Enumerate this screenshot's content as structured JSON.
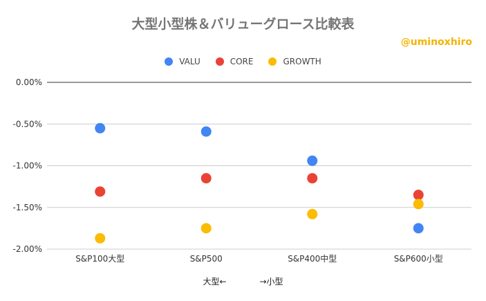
{
  "page": {
    "title": "大型小型株＆バリューグロース比較表",
    "watermark": "@uminoxhiro"
  },
  "chart_data": {
    "type": "scatter",
    "title": "大型小型株＆バリューグロース比較表",
    "xlabel": "大型←　　　　→小型",
    "ylabel": "",
    "categories": [
      "S&P100大型",
      "S&P500",
      "S&P400中型",
      "S&P600小型"
    ],
    "series": [
      {
        "name": "VALU",
        "color": "#4285f4",
        "values": [
          -0.55,
          -0.59,
          -0.94,
          -1.75
        ]
      },
      {
        "name": "CORE",
        "color": "#ea4335",
        "values": [
          -1.31,
          -1.15,
          -1.15,
          -1.35
        ]
      },
      {
        "name": "GROWTH",
        "color": "#fbbc04",
        "values": [
          -1.87,
          -1.75,
          -1.58,
          -1.46
        ]
      }
    ],
    "ylim": [
      -2.0,
      0.0
    ],
    "yticks": [
      "0.00%",
      "-0.50%",
      "-1.00%",
      "-1.50%",
      "-2.00%"
    ],
    "ytick_values": [
      0,
      -0.5,
      -1.0,
      -1.5,
      -2.0
    ],
    "grid": true,
    "legend_position": "top"
  }
}
